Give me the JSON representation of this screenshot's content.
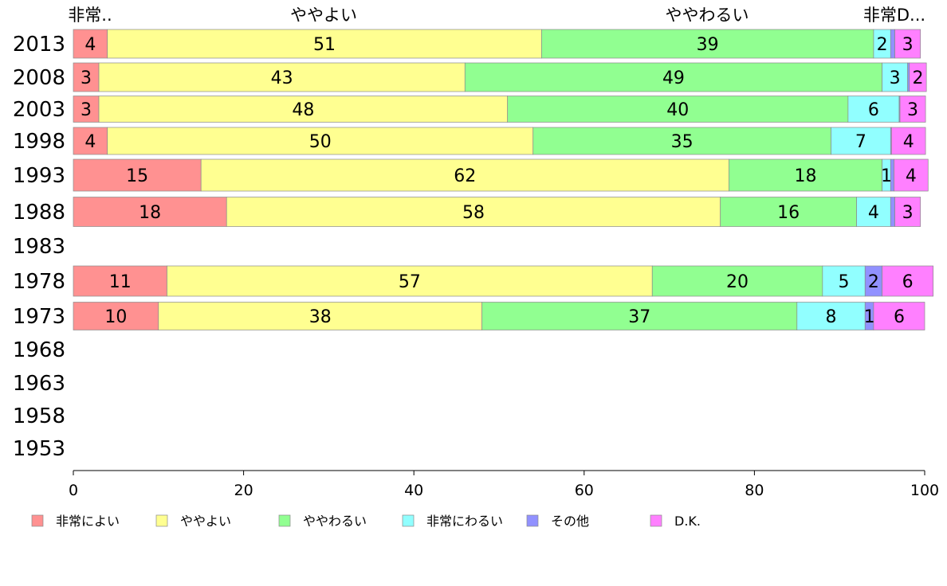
{
  "chart_data": {
    "type": "bar",
    "orientation": "horizontal",
    "stacked": true,
    "categories": [
      "2013",
      "2008",
      "2003",
      "1998",
      "1993",
      "1988",
      "1983",
      "1978",
      "1973",
      "1968",
      "1963",
      "1958",
      "1953"
    ],
    "series": [
      {
        "name": "非常によい",
        "color": "#ff9191",
        "values": [
          4,
          3,
          3,
          4,
          15,
          18,
          null,
          11,
          10,
          null,
          null,
          null,
          null
        ]
      },
      {
        "name": "ややよい",
        "color": "#ffff91",
        "values": [
          51,
          43,
          48,
          50,
          62,
          58,
          null,
          57,
          38,
          null,
          null,
          null,
          null
        ]
      },
      {
        "name": "ややわるい",
        "color": "#91ff91",
        "values": [
          39,
          49,
          40,
          35,
          18,
          16,
          null,
          20,
          37,
          null,
          null,
          null,
          null
        ]
      },
      {
        "name": "非常にわるい",
        "color": "#91ffff",
        "values": [
          2,
          3,
          6,
          7,
          1,
          4,
          null,
          5,
          8,
          null,
          null,
          null,
          null
        ]
      },
      {
        "name": "その他",
        "color": "#9191ff",
        "values": [
          0.5,
          0.2,
          0.1,
          0.1,
          0.4,
          0.5,
          null,
          2,
          1,
          null,
          null,
          null,
          null
        ]
      },
      {
        "name": "D.K.",
        "color": "#ff80ff",
        "values": [
          3,
          2,
          3,
          4,
          4,
          3,
          null,
          6,
          6,
          null,
          null,
          null,
          null
        ]
      }
    ],
    "top_labels": [
      "非常..",
      "ややよい",
      "ややわるい",
      "非常D..."
    ],
    "xlim": [
      0,
      100
    ],
    "xticks": [
      "0",
      "20",
      "40",
      "60",
      "80",
      "100"
    ],
    "legend_position": "bottom",
    "grid": false
  }
}
